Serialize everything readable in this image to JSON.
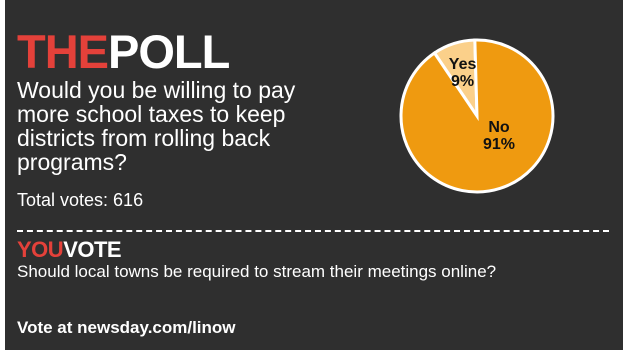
{
  "header": {
    "title_part1": "THE",
    "title_part2": "POLL"
  },
  "poll": {
    "question": "Would you be willing to pay more school taxes to keep districts from rolling back programs?",
    "total_votes": "Total votes: 616"
  },
  "next_poll": {
    "title_part1": "YOU",
    "title_part2": "VOTE",
    "question": "Should local towns be required to stream their meetings online?",
    "cta": "Vote at newsday.com/linow"
  },
  "colors": {
    "background": "#2f2f2f",
    "accent_red": "#e4413a",
    "no_slice": "#ef9a10",
    "yes_slice": "#fbd08a"
  },
  "chart_data": {
    "type": "pie",
    "slices": [
      {
        "label": "Yes",
        "value": 9,
        "display": "9%",
        "color": "#fbd08a"
      },
      {
        "label": "No",
        "value": 91,
        "display": "91%",
        "color": "#ef9a10"
      }
    ]
  }
}
